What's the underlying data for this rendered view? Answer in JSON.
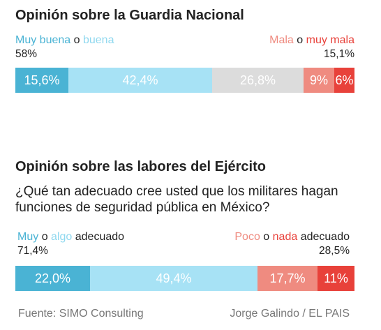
{
  "chart_data": [
    {
      "type": "bar",
      "orientation": "horizontal-stacked",
      "title": "Opinión sobre la Guardia Nacional",
      "positive": {
        "label_a": "Muy buena",
        "connector": "o",
        "label_b": "buena",
        "total_label": "58%"
      },
      "negative": {
        "label_a": "Mala",
        "connector": "o",
        "label_b": "muy mala",
        "total_label": "15,1%"
      },
      "segments": [
        {
          "value": 15.6,
          "label": "15,6%",
          "color": "#4ab3d4"
        },
        {
          "value": 42.4,
          "label": "42,4%",
          "color": "#a7e2f5"
        },
        {
          "value": 26.8,
          "label": "26,8%",
          "color": "#dcdcdc"
        },
        {
          "value": 9,
          "label": "9%",
          "color": "#ef8b80"
        },
        {
          "value": 6,
          "label": "6%",
          "color": "#e8413a"
        }
      ]
    },
    {
      "type": "bar",
      "orientation": "horizontal-stacked",
      "title": "Opinión sobre las labores del Ejército",
      "subtitle": "¿Qué tan adecuado cree usted que los militares hagan funciones de seguridad pública en México?",
      "positive": {
        "label_a": "Muy",
        "connector": "o",
        "label_b": "algo",
        "suffix": "adecuado",
        "total_label": "71,4%"
      },
      "negative": {
        "label_a": "Poco",
        "connector": "o",
        "label_b": "nada",
        "suffix": "adecuado",
        "total_label": "28,5%"
      },
      "segments": [
        {
          "value": 22.0,
          "label": "22,0%",
          "color": "#4ab3d4"
        },
        {
          "value": 49.4,
          "label": "49,4%",
          "color": "#a7e2f5"
        },
        {
          "value": 17.7,
          "label": "17,7%",
          "color": "#ef8b80"
        },
        {
          "value": 11,
          "label": "11%",
          "color": "#e8413a"
        }
      ]
    }
  ],
  "colors": {
    "muy_buena": "#4ab3d4",
    "buena": "#a7e2f5",
    "neutral": "#dcdcdc",
    "mala": "#ef8b80",
    "muy_mala": "#e8413a"
  },
  "footer": {
    "source": "Fuente: SIMO Consulting",
    "credit": "Jorge Galindo / EL PAIS"
  }
}
